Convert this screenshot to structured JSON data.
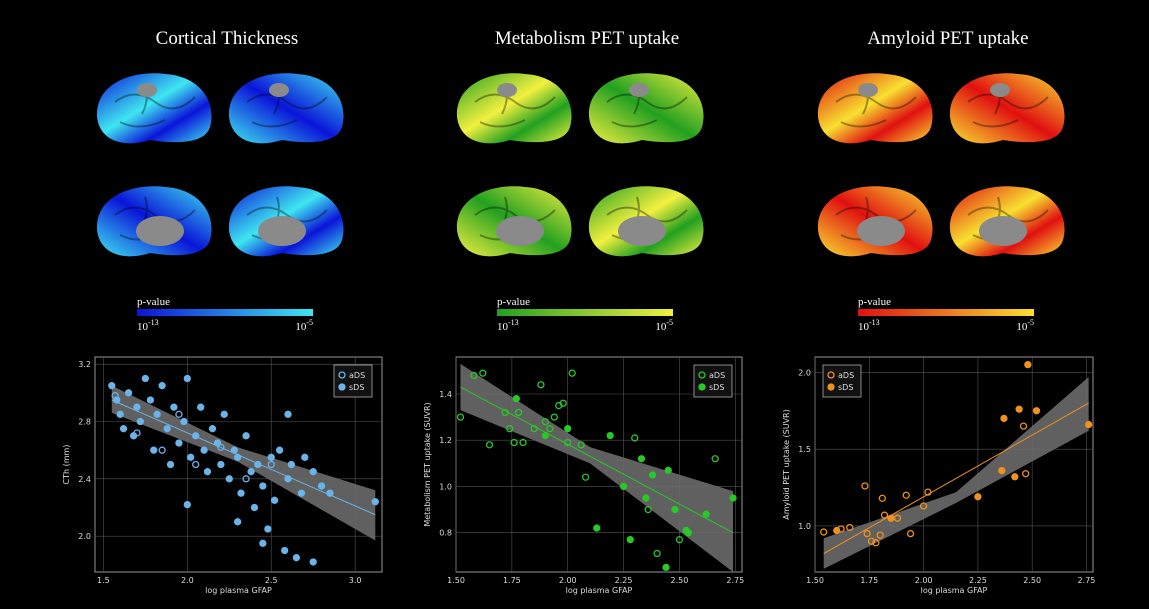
{
  "brain_panels": [
    {
      "title": "Cortical Thickness",
      "colorbar_label": "p-value",
      "colorbar_min": {
        "base": "10",
        "exponent": "-13"
      },
      "colorbar_max": {
        "base": "10",
        "exponent": "-5"
      },
      "colormap": [
        "#0a14d8",
        "#3fe6f0"
      ]
    },
    {
      "title": "Metabolism PET uptake",
      "colorbar_label": "p-value",
      "colorbar_min": {
        "base": "10",
        "exponent": "-13"
      },
      "colorbar_max": {
        "base": "10",
        "exponent": "-5"
      },
      "colormap": [
        "#22a020",
        "#f2f040"
      ]
    },
    {
      "title": "Amyloid PET uptake",
      "colorbar_label": "p-value",
      "colorbar_min": {
        "base": "10",
        "exponent": "-13"
      },
      "colorbar_max": {
        "base": "10",
        "exponent": "-5"
      },
      "colormap": [
        "#e01010",
        "#f8e030"
      ]
    }
  ],
  "chart_data": [
    {
      "type": "scatter",
      "x_label": "log plasma GFAP",
      "y_label": "CTh (mm)",
      "grid": true,
      "legend": "upper-right",
      "xlim": [
        1.45,
        3.16
      ],
      "ylim": [
        1.75,
        3.25
      ],
      "xticks": [
        1.5,
        {
          "value": 2,
          "label": "2.0"
        },
        2.5,
        {
          "value": 3,
          "label": "3.0"
        }
      ],
      "yticks": [
        {
          "value": 2,
          "label": "2.0"
        },
        2.4,
        2.8,
        3.2
      ],
      "series": [
        {
          "name": "aDS",
          "color": "#6ab4ea",
          "marker": "hollow",
          "x": [
            1.57,
            1.7,
            1.85,
            1.95,
            2.05,
            2.2,
            2.35,
            2.5
          ],
          "values": [
            2.98,
            2.72,
            2.6,
            2.85,
            2.5,
            2.62,
            2.4,
            2.5
          ]
        },
        {
          "name": "sDS",
          "color": "#6ab4ea",
          "marker": "filled",
          "x": [
            1.55,
            1.58,
            1.6,
            1.62,
            1.65,
            1.68,
            1.7,
            1.72,
            1.75,
            1.78,
            1.8,
            1.82,
            1.85,
            1.88,
            1.9,
            1.92,
            1.95,
            1.98,
            2.0,
            2.02,
            2.05,
            2.08,
            2.1,
            2.12,
            2.15,
            2.18,
            2.2,
            2.22,
            2.25,
            2.28,
            2.3,
            2.32,
            2.35,
            2.38,
            2.4,
            2.42,
            2.45,
            2.48,
            2.5,
            2.52,
            2.55,
            2.58,
            2.6,
            2.62,
            2.65,
            2.68,
            2.7,
            2.75,
            2.8,
            2.85,
            3.12,
            2.0,
            2.3,
            2.45,
            2.75,
            2.6
          ],
          "values": [
            3.05,
            2.95,
            2.85,
            2.75,
            3.0,
            2.7,
            2.9,
            2.8,
            3.1,
            2.95,
            2.6,
            2.85,
            3.05,
            2.75,
            2.5,
            2.9,
            2.65,
            2.8,
            3.1,
            2.55,
            2.7,
            2.9,
            2.6,
            2.45,
            2.75,
            2.65,
            2.5,
            2.85,
            2.4,
            2.6,
            2.55,
            2.3,
            2.7,
            2.45,
            2.2,
            2.5,
            2.35,
            2.05,
            2.55,
            2.25,
            2.6,
            1.9,
            2.4,
            2.5,
            1.85,
            2.3,
            2.55,
            2.45,
            2.35,
            2.3,
            2.24,
            2.22,
            2.1,
            1.95,
            1.82,
            2.85
          ]
        }
      ],
      "fit": {
        "x": [
          1.55,
          3.12
        ],
        "values": [
          2.95,
          2.15
        ]
      },
      "ci": {
        "x": [
          1.55,
          2.3,
          3.12
        ],
        "lower": [
          2.86,
          2.52,
          1.97
        ],
        "upper": [
          3.05,
          2.62,
          2.32
        ]
      }
    },
    {
      "type": "scatter",
      "x_label": "log plasma GFAP",
      "y_label": "Metabolism PET uptake (SUVR)",
      "grid": true,
      "legend": "upper-right",
      "xlim": [
        1.5,
        2.78
      ],
      "ylim": [
        0.63,
        1.56
      ],
      "xticks": [
        {
          "value": 1.5,
          "label": "1.50"
        },
        1.75,
        {
          "value": 2,
          "label": "2.00"
        },
        2.25,
        {
          "value": 2.5,
          "label": "2.50"
        },
        2.75
      ],
      "yticks": [
        0.8,
        {
          "value": 1,
          "label": "1.0"
        },
        1.2,
        1.4
      ],
      "series": [
        {
          "name": "aDS",
          "color": "#28c828",
          "marker": "hollow",
          "x": [
            1.52,
            1.58,
            1.62,
            1.65,
            1.72,
            1.74,
            1.76,
            1.78,
            1.8,
            1.85,
            1.88,
            1.9,
            1.92,
            1.94,
            1.96,
            1.98,
            2.0,
            2.02,
            2.06,
            2.08,
            2.3,
            2.36,
            2.4,
            2.5,
            2.66
          ],
          "values": [
            1.3,
            1.48,
            1.49,
            1.18,
            1.32,
            1.25,
            1.19,
            1.32,
            1.19,
            1.25,
            1.44,
            1.28,
            1.25,
            1.3,
            1.35,
            1.36,
            1.19,
            1.49,
            1.18,
            1.04,
            1.21,
            0.9,
            0.71,
            0.77,
            1.12
          ]
        },
        {
          "name": "sDS",
          "color": "#28c828",
          "marker": "filled",
          "x": [
            1.77,
            1.9,
            2.0,
            2.19,
            2.13,
            2.25,
            2.28,
            2.33,
            2.35,
            2.38,
            2.44,
            2.45,
            2.48,
            2.53,
            2.54,
            2.62,
            2.74
          ],
          "values": [
            1.38,
            1.22,
            1.25,
            1.22,
            0.82,
            1.0,
            0.77,
            1.12,
            0.95,
            1.05,
            0.65,
            1.07,
            0.9,
            0.81,
            0.8,
            0.88,
            0.95
          ]
        }
      ],
      "fit": {
        "x": [
          1.52,
          2.74
        ],
        "values": [
          1.43,
          0.8
        ]
      },
      "ci": {
        "x": [
          1.52,
          2.1,
          2.74
        ],
        "lower": [
          1.33,
          1.1,
          0.63
        ],
        "upper": [
          1.53,
          1.17,
          0.98
        ]
      }
    },
    {
      "type": "scatter",
      "x_label": "log plasma GFAP",
      "y_label": "Amyloid PET uptake (SUVR)",
      "grid": true,
      "legend": "upper-left",
      "xlim": [
        1.5,
        2.78
      ],
      "ylim": [
        0.7,
        2.1
      ],
      "xticks": [
        {
          "value": 1.5,
          "label": "1.50"
        },
        1.75,
        {
          "value": 2,
          "label": "2.00"
        },
        2.25,
        {
          "value": 2.5,
          "label": "2.50"
        },
        2.75
      ],
      "yticks": [
        {
          "value": 1,
          "label": "1.0"
        },
        1.5,
        {
          "value": 2,
          "label": "2.0"
        }
      ],
      "series": [
        {
          "name": "aDS",
          "color": "#f0901e",
          "marker": "hollow",
          "x": [
            1.54,
            1.62,
            1.66,
            1.73,
            1.74,
            1.76,
            1.78,
            1.8,
            1.81,
            1.82,
            1.88,
            1.92,
            1.94,
            2.0,
            2.02,
            2.47,
            2.46
          ],
          "values": [
            0.96,
            0.98,
            0.99,
            1.26,
            0.95,
            0.9,
            0.89,
            0.94,
            1.18,
            1.07,
            1.05,
            1.2,
            0.95,
            1.13,
            1.22,
            1.34,
            1.65
          ]
        },
        {
          "name": "sDS",
          "color": "#f0901e",
          "marker": "filled",
          "x": [
            1.6,
            1.85,
            2.25,
            2.36,
            2.37,
            2.42,
            2.44,
            2.48,
            2.52,
            2.76
          ],
          "values": [
            0.97,
            1.05,
            1.19,
            1.36,
            1.7,
            1.32,
            1.76,
            2.05,
            1.75,
            1.66
          ]
        }
      ],
      "fit": {
        "x": [
          1.54,
          2.76
        ],
        "values": [
          0.82,
          1.8
        ]
      },
      "ci": {
        "x": [
          1.54,
          2.15,
          2.76
        ],
        "lower": [
          0.72,
          1.15,
          1.62
        ],
        "upper": [
          0.92,
          1.22,
          1.97
        ]
      }
    }
  ]
}
